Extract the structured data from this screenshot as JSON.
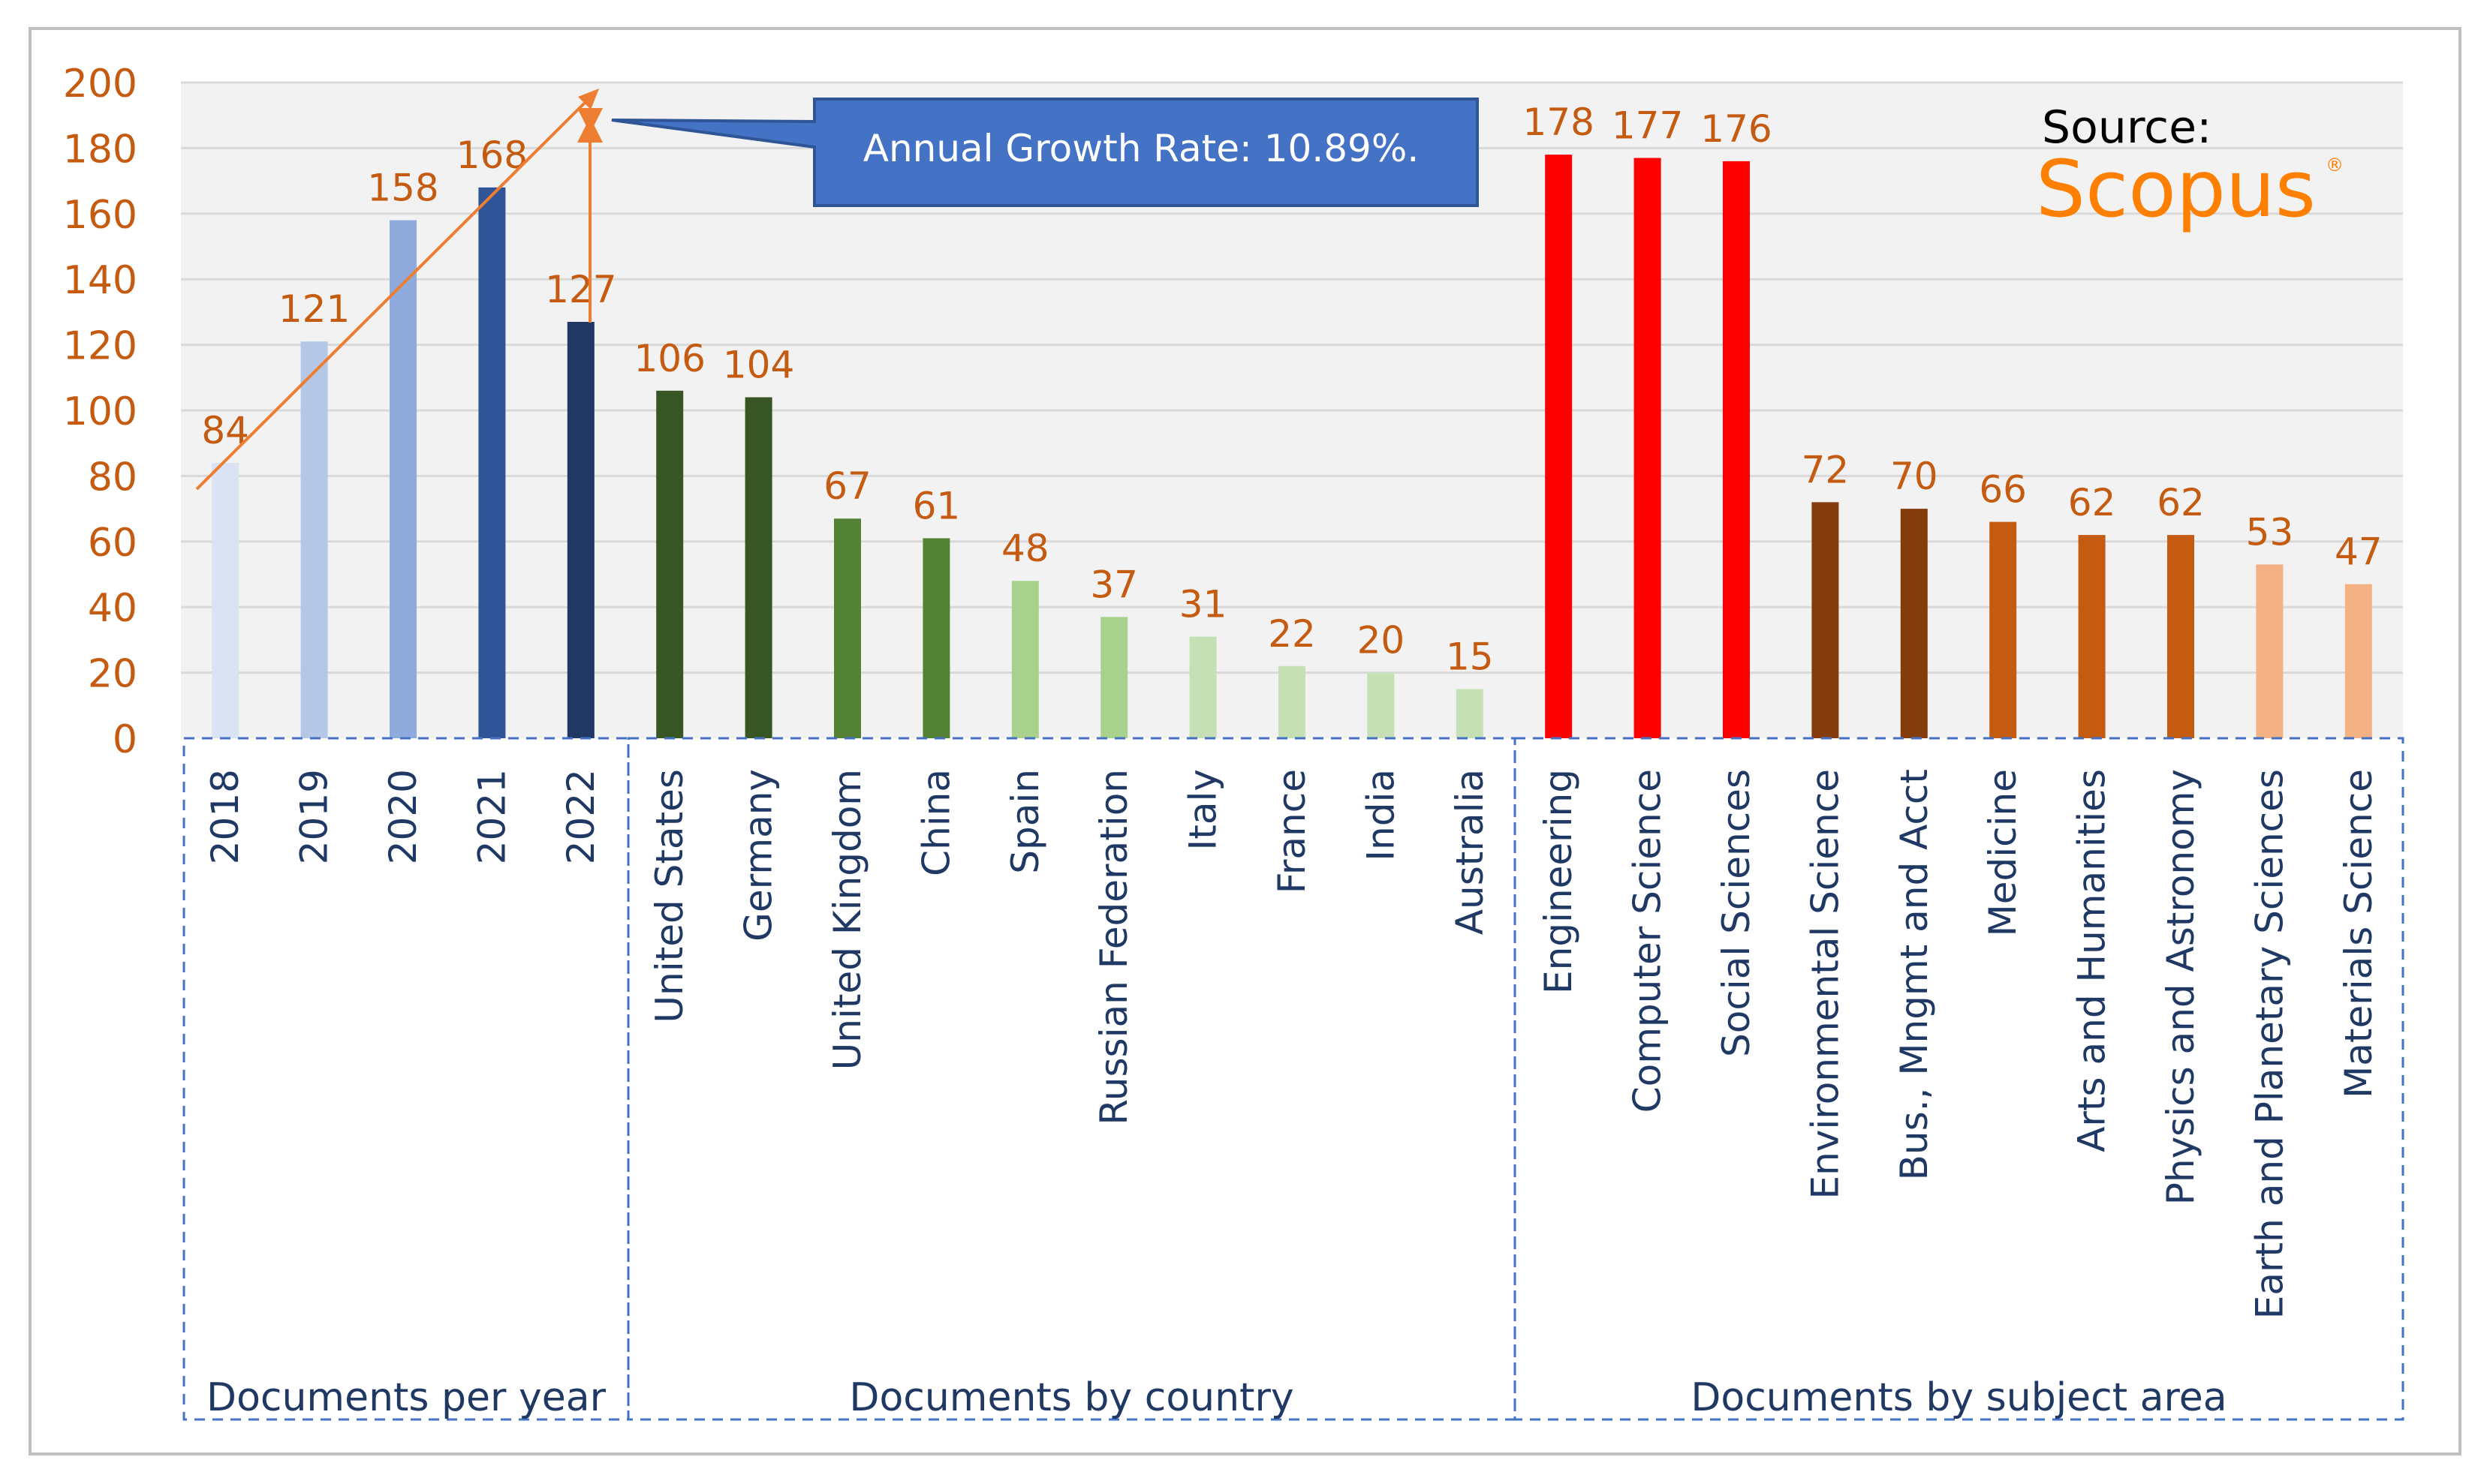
{
  "chart_data": {
    "type": "bar",
    "ylim": [
      0,
      200
    ],
    "y_ticks": [
      0,
      20,
      40,
      60,
      80,
      100,
      120,
      140,
      160,
      180,
      200
    ],
    "grid": true,
    "groups": [
      {
        "label": "Documents per year",
        "categories": [
          "2018",
          "2019",
          "2020",
          "2021",
          "2022"
        ],
        "values": [
          84,
          121,
          158,
          168,
          127
        ],
        "colors": [
          "#dae3f3",
          "#b4c7e7",
          "#8faadc",
          "#2f5597",
          "#1f3864"
        ]
      },
      {
        "label": "Documents by country",
        "categories": [
          "United States",
          "Germany",
          "United Kingdom",
          "China",
          "Spain",
          "Russian Federation",
          "Italy",
          "France",
          "India",
          "Australia"
        ],
        "values": [
          106,
          104,
          67,
          61,
          48,
          37,
          31,
          22,
          20,
          15
        ],
        "colors": [
          "#375623",
          "#375623",
          "#548235",
          "#548235",
          "#a9d18e",
          "#a9d18e",
          "#c5e0b4",
          "#c5e0b4",
          "#c5e0b4",
          "#c5e0b4"
        ]
      },
      {
        "label": "Documents by subject area",
        "categories": [
          "Engineering",
          "Computer Science",
          "Social Sciences",
          "Environmental Science",
          "Bus., Mngmt and Acct",
          "Medicine",
          "Arts and Humanities",
          "Physics and Astronomy",
          "Earth and Planetary Sciences",
          "Materials Science"
        ],
        "values": [
          178,
          177,
          176,
          72,
          70,
          66,
          62,
          62,
          53,
          47
        ],
        "colors": [
          "#ff0000",
          "#ff0000",
          "#ff0000",
          "#843c0c",
          "#843c0c",
          "#c55a11",
          "#c55a11",
          "#c55a11",
          "#f4b183",
          "#f4b183"
        ]
      }
    ],
    "annotations": {
      "growth_callout": "Annual Growth Rate: 10.89%.",
      "source_label": "Source:",
      "source_brand": "Scopus",
      "source_brand_mark": "®"
    },
    "label_color": "#c55a11",
    "axis_label_color": "#1f3864",
    "callout_fill": "#4472c4",
    "trend_color": "#ed7d31",
    "source_brand_color": "#ff7f00"
  }
}
